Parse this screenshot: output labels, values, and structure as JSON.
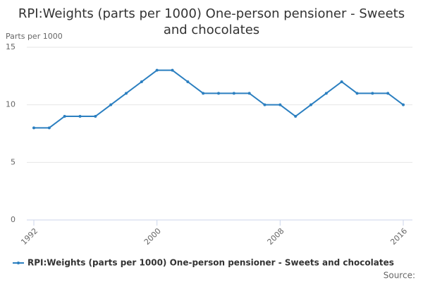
{
  "chart_data": {
    "type": "line",
    "title": "RPI:Weights (parts per 1000) One-person pensioner - Sweets and chocolates",
    "y_label": "Parts per 1000",
    "source": "Source:",
    "x": [
      1992,
      1993,
      1994,
      1995,
      1996,
      1997,
      1998,
      1999,
      2000,
      2001,
      2002,
      2003,
      2004,
      2005,
      2006,
      2007,
      2008,
      2009,
      2010,
      2011,
      2012,
      2013,
      2014,
      2015,
      2016
    ],
    "series": [
      {
        "name": "RPI:Weights (parts per 1000) One-person pensioner - Sweets and chocolates",
        "color": "#2b7fc0",
        "values": [
          8,
          8,
          9,
          9,
          9,
          10,
          11,
          12,
          13,
          13,
          12,
          11,
          11,
          11,
          11,
          10,
          10,
          9,
          10,
          11,
          12,
          11,
          11,
          11,
          10
        ]
      }
    ],
    "xlim": [
      1992,
      2016
    ],
    "xticks": [
      1992,
      2000,
      2008,
      2016
    ],
    "ylim": [
      0,
      15
    ],
    "yticks": [
      0,
      5,
      10,
      15
    ],
    "grid": true
  }
}
